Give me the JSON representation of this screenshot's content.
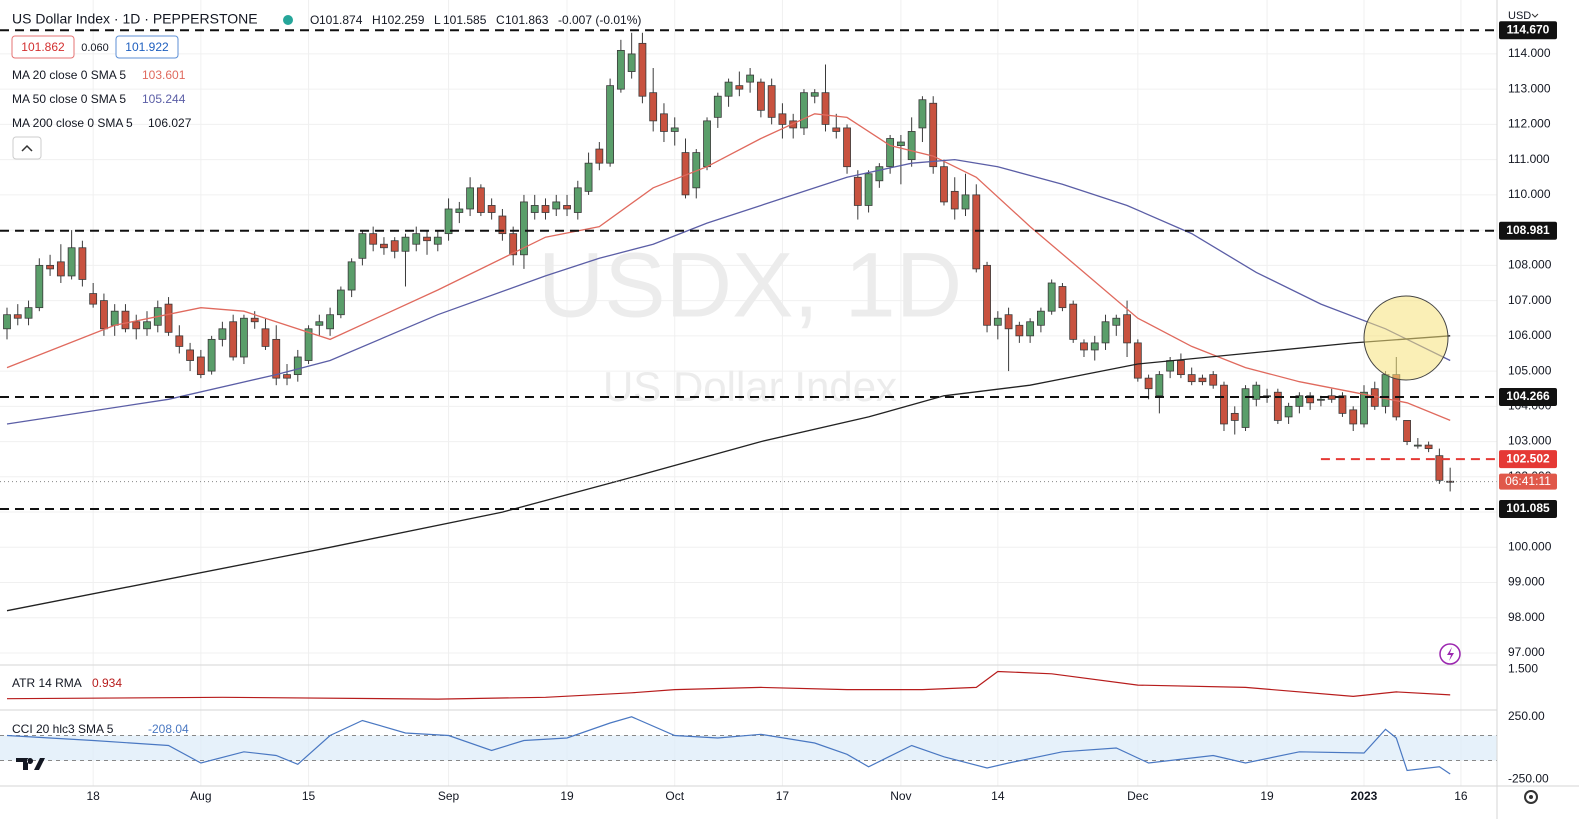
{
  "header": {
    "symbol": "US Dollar Index · 1D · PEPPERSTONE",
    "ohlc": [
      [
        "O",
        "101.874"
      ],
      [
        "H",
        "102.259"
      ],
      [
        "L",
        "101.585"
      ],
      [
        "C",
        "101.863"
      ]
    ],
    "change": "-0.007 (-0.01%)",
    "bid": "101.862",
    "spread": "0.060",
    "ask": "101.922"
  },
  "chart_data": {
    "type": "candlestick",
    "watermark_title": "USDX, 1D",
    "watermark_subtitle": "US Dollar Index",
    "currency": "USD",
    "up_color": "#5a9e6a",
    "down_color": "#c8523f",
    "xlim": [
      -0.65,
      138.35
    ],
    "ylim": [
      96.66,
      115.53
    ],
    "xticks": [
      {
        "value": 8,
        "label": "18"
      },
      {
        "value": 18,
        "label": "Aug"
      },
      {
        "value": 28,
        "label": "15"
      },
      {
        "value": 41,
        "label": "Sep"
      },
      {
        "value": 52,
        "label": "19"
      },
      {
        "value": 62,
        "label": "Oct"
      },
      {
        "value": 72,
        "label": "17"
      },
      {
        "value": 83,
        "label": "Nov"
      },
      {
        "value": 92,
        "label": "14"
      },
      {
        "value": 105,
        "label": "Dec"
      },
      {
        "value": 117,
        "label": "19"
      },
      {
        "value": 126,
        "label": "2023"
      },
      {
        "value": 135,
        "label": "16"
      }
    ],
    "yticks": [
      {
        "value": 97,
        "label": "97.000"
      },
      {
        "value": 98,
        "label": "98.000"
      },
      {
        "value": 99,
        "label": "99.000"
      },
      {
        "value": 100,
        "label": "100.000"
      },
      {
        "value": 101,
        "label": "101.000"
      },
      {
        "value": 102,
        "label": "102.000"
      },
      {
        "value": 103,
        "label": "103.000"
      },
      {
        "value": 104,
        "label": "104.000"
      },
      {
        "value": 105,
        "label": "105.000"
      },
      {
        "value": 106,
        "label": "106.000"
      },
      {
        "value": 107,
        "label": "107.000"
      },
      {
        "value": 108,
        "label": "108.000"
      },
      {
        "value": 109,
        "label": "109.000"
      },
      {
        "value": 110,
        "label": "110.000"
      },
      {
        "value": 111,
        "label": "111.000"
      },
      {
        "value": 112,
        "label": "112.000"
      },
      {
        "value": 113,
        "label": "113.000"
      },
      {
        "value": 114,
        "label": "114.000"
      }
    ],
    "grid": true,
    "ohlc": [
      [
        106.2,
        106.8,
        105.9,
        106.6
      ],
      [
        106.6,
        106.9,
        106.3,
        106.5
      ],
      [
        106.5,
        107.0,
        106.3,
        106.8
      ],
      [
        106.8,
        108.2,
        106.7,
        108.0
      ],
      [
        108.0,
        108.3,
        107.7,
        107.9
      ],
      [
        108.1,
        108.6,
        107.5,
        107.7
      ],
      [
        107.7,
        109.0,
        107.6,
        108.5
      ],
      [
        108.5,
        108.7,
        107.4,
        107.6
      ],
      [
        107.2,
        107.5,
        106.8,
        106.9
      ],
      [
        107.0,
        107.2,
        106.0,
        106.2
      ],
      [
        106.3,
        106.9,
        106.0,
        106.7
      ],
      [
        106.7,
        106.9,
        106.1,
        106.2
      ],
      [
        106.4,
        106.6,
        105.9,
        106.2
      ],
      [
        106.2,
        106.7,
        106.0,
        106.4
      ],
      [
        106.3,
        107.0,
        106.1,
        106.8
      ],
      [
        106.9,
        107.1,
        106.0,
        106.1
      ],
      [
        106.0,
        106.3,
        105.5,
        105.7
      ],
      [
        105.6,
        105.8,
        105.0,
        105.3
      ],
      [
        105.4,
        105.6,
        104.8,
        104.9
      ],
      [
        105.0,
        106.0,
        104.9,
        105.9
      ],
      [
        105.9,
        106.4,
        105.7,
        106.2
      ],
      [
        106.4,
        106.6,
        105.3,
        105.4
      ],
      [
        105.4,
        106.6,
        105.2,
        106.5
      ],
      [
        106.5,
        106.7,
        106.2,
        106.4
      ],
      [
        106.2,
        106.5,
        105.6,
        105.7
      ],
      [
        105.9,
        106.3,
        104.6,
        104.8
      ],
      [
        104.9,
        105.2,
        104.6,
        104.8
      ],
      [
        104.9,
        105.6,
        104.7,
        105.4
      ],
      [
        105.3,
        106.3,
        105.2,
        106.2
      ],
      [
        106.3,
        106.6,
        106.0,
        106.4
      ],
      [
        106.2,
        106.8,
        106.0,
        106.6
      ],
      [
        106.6,
        107.4,
        106.5,
        107.3
      ],
      [
        107.3,
        108.2,
        107.1,
        108.1
      ],
      [
        108.2,
        109.0,
        108.0,
        108.9
      ],
      [
        108.9,
        109.1,
        108.4,
        108.6
      ],
      [
        108.6,
        108.8,
        108.3,
        108.5
      ],
      [
        108.7,
        108.8,
        108.2,
        108.4
      ],
      [
        108.4,
        108.9,
        107.4,
        108.8
      ],
      [
        108.6,
        109.1,
        108.4,
        108.9
      ],
      [
        108.8,
        109.0,
        108.3,
        108.7
      ],
      [
        108.6,
        109.0,
        108.4,
        108.8
      ],
      [
        108.9,
        109.9,
        108.7,
        109.6
      ],
      [
        109.5,
        109.8,
        109.2,
        109.6
      ],
      [
        109.6,
        110.5,
        109.4,
        110.2
      ],
      [
        110.2,
        110.3,
        109.4,
        109.5
      ],
      [
        109.7,
        109.9,
        109.3,
        109.5
      ],
      [
        109.4,
        109.6,
        108.7,
        108.9
      ],
      [
        108.9,
        109.1,
        108.0,
        108.3
      ],
      [
        108.3,
        110.0,
        107.9,
        109.8
      ],
      [
        109.5,
        110.0,
        109.3,
        109.7
      ],
      [
        109.7,
        109.9,
        109.3,
        109.5
      ],
      [
        109.6,
        110.0,
        109.4,
        109.8
      ],
      [
        109.7,
        110.0,
        109.4,
        109.6
      ],
      [
        109.5,
        110.4,
        109.3,
        110.2
      ],
      [
        110.1,
        111.2,
        110.0,
        110.9
      ],
      [
        111.3,
        111.5,
        110.7,
        110.9
      ],
      [
        110.9,
        113.3,
        110.8,
        113.1
      ],
      [
        113.0,
        114.4,
        112.9,
        114.1
      ],
      [
        113.5,
        114.6,
        113.3,
        114.0
      ],
      [
        114.3,
        114.6,
        112.6,
        112.8
      ],
      [
        112.9,
        113.6,
        111.8,
        112.1
      ],
      [
        112.3,
        112.6,
        111.5,
        111.8
      ],
      [
        111.8,
        112.2,
        111.4,
        111.9
      ],
      [
        111.2,
        111.6,
        109.9,
        110.0
      ],
      [
        110.2,
        111.3,
        109.9,
        111.2
      ],
      [
        110.8,
        112.2,
        110.7,
        112.1
      ],
      [
        112.2,
        112.9,
        111.9,
        112.8
      ],
      [
        112.8,
        113.3,
        112.5,
        113.2
      ],
      [
        113.1,
        113.5,
        112.8,
        113.0
      ],
      [
        113.2,
        113.6,
        112.9,
        113.4
      ],
      [
        113.2,
        113.3,
        112.2,
        112.4
      ],
      [
        113.1,
        113.3,
        112.0,
        112.2
      ],
      [
        112.3,
        112.6,
        111.6,
        112.0
      ],
      [
        112.1,
        112.3,
        111.6,
        111.9
      ],
      [
        111.9,
        113.0,
        111.7,
        112.9
      ],
      [
        112.8,
        113.0,
        112.6,
        112.9
      ],
      [
        112.9,
        113.7,
        111.8,
        112.0
      ],
      [
        111.9,
        112.3,
        111.6,
        111.8
      ],
      [
        111.9,
        112.0,
        110.6,
        110.8
      ],
      [
        110.5,
        110.7,
        109.3,
        109.7
      ],
      [
        109.7,
        110.7,
        109.5,
        110.6
      ],
      [
        110.4,
        110.9,
        110.2,
        110.8
      ],
      [
        110.8,
        111.7,
        110.6,
        111.6
      ],
      [
        111.4,
        111.7,
        110.3,
        111.5
      ],
      [
        111.0,
        112.2,
        110.8,
        111.8
      ],
      [
        111.9,
        112.8,
        111.5,
        112.7
      ],
      [
        112.6,
        112.8,
        110.6,
        110.8
      ],
      [
        110.8,
        111.0,
        109.7,
        109.8
      ],
      [
        110.1,
        110.5,
        109.3,
        109.6
      ],
      [
        109.6,
        110.6,
        109.4,
        110.0
      ],
      [
        110.0,
        110.3,
        107.8,
        107.9
      ],
      [
        108.0,
        108.1,
        106.1,
        106.3
      ],
      [
        106.3,
        106.7,
        105.9,
        106.5
      ],
      [
        106.6,
        106.8,
        105.0,
        106.2
      ],
      [
        106.3,
        106.4,
        105.8,
        106.0
      ],
      [
        106.0,
        106.5,
        105.8,
        106.4
      ],
      [
        106.3,
        106.8,
        106.1,
        106.7
      ],
      [
        106.7,
        107.6,
        106.6,
        107.5
      ],
      [
        107.4,
        107.5,
        106.7,
        106.8
      ],
      [
        106.9,
        107.0,
        105.8,
        105.9
      ],
      [
        105.8,
        105.9,
        105.4,
        105.6
      ],
      [
        105.6,
        106.0,
        105.3,
        105.8
      ],
      [
        105.8,
        106.6,
        105.6,
        106.4
      ],
      [
        106.3,
        106.6,
        106.0,
        106.5
      ],
      [
        106.6,
        107.0,
        105.4,
        105.8
      ],
      [
        105.8,
        105.9,
        104.7,
        104.8
      ],
      [
        104.8,
        104.9,
        104.2,
        104.5
      ],
      [
        104.3,
        105.0,
        103.8,
        104.9
      ],
      [
        105.0,
        105.4,
        104.8,
        105.3
      ],
      [
        105.3,
        105.5,
        104.8,
        104.9
      ],
      [
        104.9,
        105.1,
        104.6,
        104.7
      ],
      [
        104.8,
        104.9,
        104.6,
        104.7
      ],
      [
        104.9,
        105.0,
        104.5,
        104.6
      ],
      [
        104.6,
        104.7,
        103.3,
        103.5
      ],
      [
        103.8,
        104.0,
        103.2,
        103.6
      ],
      [
        103.4,
        104.6,
        103.3,
        104.5
      ],
      [
        104.2,
        104.7,
        104.0,
        104.6
      ],
      [
        104.3,
        104.5,
        104.1,
        104.3
      ],
      [
        104.4,
        104.5,
        103.5,
        103.6
      ],
      [
        103.7,
        104.1,
        103.5,
        104.0
      ],
      [
        104.0,
        104.4,
        103.8,
        104.3
      ],
      [
        104.3,
        104.4,
        103.9,
        104.1
      ],
      [
        104.2,
        104.3,
        104.0,
        104.2
      ],
      [
        104.3,
        104.5,
        104.1,
        104.2
      ],
      [
        104.3,
        104.4,
        103.7,
        103.8
      ],
      [
        103.9,
        104.0,
        103.3,
        103.5
      ],
      [
        103.5,
        104.6,
        103.4,
        104.4
      ],
      [
        104.5,
        104.7,
        103.9,
        104.0
      ],
      [
        104.0,
        105.0,
        103.8,
        104.9
      ],
      [
        104.9,
        105.4,
        103.6,
        103.7
      ],
      [
        103.6,
        103.6,
        102.9,
        103.0
      ],
      [
        102.9,
        103.1,
        102.8,
        102.9
      ],
      [
        102.9,
        103.0,
        102.7,
        102.8
      ],
      [
        102.6,
        102.8,
        101.8,
        101.9
      ],
      [
        101.874,
        102.259,
        101.585,
        101.863
      ]
    ],
    "indicators": [
      {
        "name": "MA 20 close 0 SMA 5",
        "value_label": "103.601",
        "color": "#e06a5e",
        "x": [
          0,
          10,
          18,
          22,
          30,
          40,
          50,
          55,
          60,
          65,
          70,
          75,
          78,
          82,
          86,
          90,
          95,
          100,
          105,
          110,
          115,
          120,
          125,
          130,
          134
        ],
        "values": [
          105.1,
          106.3,
          106.8,
          106.7,
          105.9,
          107.3,
          108.8,
          109.1,
          110.2,
          110.8,
          111.6,
          112.3,
          112.2,
          111.4,
          111.1,
          110.5,
          109.1,
          107.8,
          106.5,
          105.7,
          105.1,
          104.7,
          104.4,
          104.1,
          103.6
        ]
      },
      {
        "name": "MA 50 close 0 SMA 5",
        "value_label": "105.244",
        "color": "#5b5ea6",
        "x": [
          0,
          15,
          25,
          30,
          40,
          50,
          55,
          60,
          65,
          72,
          78,
          84,
          88,
          92,
          98,
          104,
          110,
          116,
          122,
          128,
          134
        ],
        "values": [
          103.5,
          104.2,
          104.9,
          105.3,
          106.6,
          107.7,
          108.2,
          108.6,
          109.2,
          109.9,
          110.5,
          110.9,
          111.0,
          110.8,
          110.3,
          109.7,
          108.9,
          107.8,
          106.9,
          106.2,
          105.3
        ]
      },
      {
        "name": "MA 200 close 0 SMA 5",
        "value_label": "106.027",
        "color": "#222222",
        "x": [
          0,
          30,
          46,
          57,
          70,
          80,
          87,
          95,
          105,
          115,
          125,
          134
        ],
        "values": [
          98.2,
          100.0,
          101.0,
          101.9,
          103.0,
          103.7,
          104.3,
          104.6,
          105.2,
          105.5,
          105.8,
          106.0
        ]
      }
    ],
    "levels": [
      {
        "value": 114.67,
        "label": "114.670"
      },
      {
        "value": 108.981,
        "label": "108.981"
      },
      {
        "value": 104.266,
        "label": "104.266"
      },
      {
        "value": 101.085,
        "label": "101.085"
      }
    ],
    "alert_level": {
      "value": 102.502,
      "label": "102.502",
      "from": 122,
      "color": "#e53935"
    },
    "price_line": {
      "value": 101.863,
      "countdown": "06:41:11",
      "color": "#e0584a"
    },
    "panes": [
      {
        "name": "ATR 14 RMA",
        "value_label": "0.934",
        "color": "#b71c1c",
        "ylim": [
          0.6,
          1.55
        ],
        "yticks": [
          {
            "value": 1.5,
            "label": "1.500"
          }
        ],
        "x": [
          0,
          20,
          40,
          50,
          58,
          62,
          70,
          78,
          85,
          90,
          92,
          97,
          105,
          115,
          125,
          129,
          134
        ],
        "values": [
          0.85,
          0.88,
          0.84,
          0.88,
          0.98,
          1.05,
          1.1,
          1.05,
          1.05,
          1.1,
          1.45,
          1.4,
          1.15,
          1.1,
          0.9,
          1.0,
          0.934
        ]
      },
      {
        "name": "CCI 20 hlc3 SMA 5",
        "value_label": "-208.04",
        "color": "#4a78c2",
        "ylim": [
          -280,
          280
        ],
        "band": [
          -100,
          100
        ],
        "yticks": [
          {
            "value": 250,
            "label": "250.00"
          },
          {
            "value": -250,
            "label": "-250.00"
          }
        ],
        "x": [
          0,
          8,
          15,
          18,
          22,
          25,
          27,
          30,
          33,
          37,
          41,
          45,
          48,
          52,
          56,
          58,
          62,
          66,
          70,
          75,
          78,
          80,
          84,
          87,
          91,
          93,
          98,
          103,
          106,
          112,
          115,
          120,
          126,
          128,
          129,
          130,
          133,
          134
        ],
        "values": [
          100,
          60,
          20,
          -120,
          -30,
          -60,
          -130,
          100,
          220,
          120,
          100,
          -20,
          60,
          80,
          200,
          250,
          100,
          80,
          110,
          40,
          -50,
          -150,
          20,
          -70,
          -160,
          -120,
          -30,
          0,
          -120,
          -60,
          -120,
          -30,
          -40,
          150,
          80,
          -180,
          -150,
          -208.04
        ]
      }
    ]
  }
}
